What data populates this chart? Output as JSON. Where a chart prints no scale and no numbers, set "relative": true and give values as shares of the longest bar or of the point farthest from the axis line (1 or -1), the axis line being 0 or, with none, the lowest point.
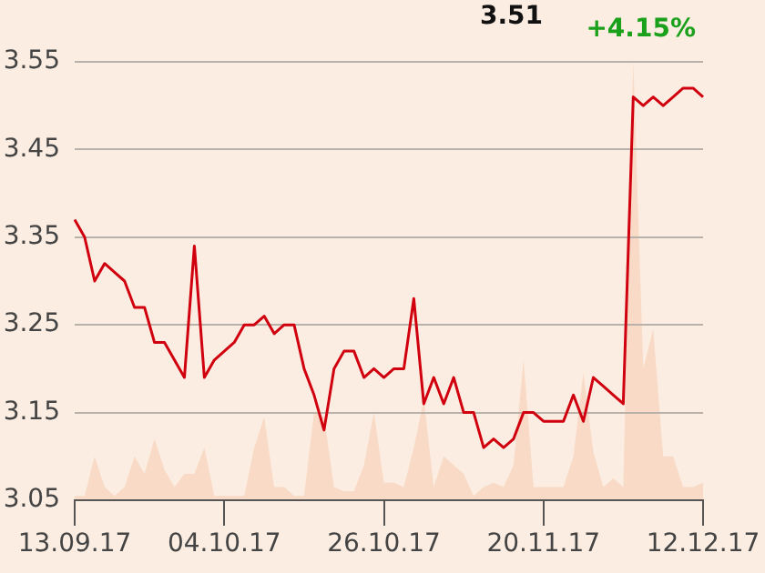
{
  "chart_data": [
    {
      "type": "line",
      "annotations": [
        "3.51",
        "+4.15%"
      ],
      "categories": [
        "13.09.17",
        null,
        null,
        null,
        null,
        null,
        null,
        null,
        null,
        null,
        null,
        null,
        null,
        null,
        null,
        "04.10.17",
        null,
        null,
        null,
        null,
        null,
        null,
        null,
        null,
        null,
        null,
        null,
        null,
        null,
        null,
        null,
        "26.10.17",
        null,
        null,
        null,
        null,
        null,
        null,
        null,
        null,
        null,
        null,
        null,
        null,
        null,
        null,
        null,
        "20.11.17",
        null,
        null,
        null,
        null,
        null,
        null,
        null,
        null,
        null,
        null,
        null,
        null,
        null,
        null,
        null,
        "12.12.17"
      ],
      "series": [
        {
          "color": "#d0000f",
          "values": [
            3.37,
            3.35,
            3.3,
            3.32,
            3.31,
            3.3,
            3.27,
            3.27,
            3.23,
            3.23,
            3.21,
            3.19,
            3.34,
            3.19,
            3.21,
            3.22,
            3.23,
            3.25,
            3.25,
            3.26,
            3.24,
            3.25,
            3.25,
            3.2,
            3.17,
            3.13,
            3.2,
            3.22,
            3.22,
            3.19,
            3.2,
            3.19,
            3.2,
            3.2,
            3.28,
            3.16,
            3.19,
            3.16,
            3.19,
            3.15,
            3.15,
            3.11,
            3.12,
            3.11,
            3.12,
            3.15,
            3.15,
            3.14,
            3.14,
            3.14,
            3.17,
            3.14,
            3.19,
            3.18,
            3.17,
            3.16,
            3.51,
            3.5,
            3.51,
            3.5,
            3.51,
            3.52,
            3.52,
            3.51
          ]
        }
      ],
      "ylim": [
        3.05,
        3.55
      ],
      "yticks": [
        3.05,
        3.15,
        3.25,
        3.35,
        3.45,
        3.55
      ],
      "grid": "y"
    },
    {
      "type": "area",
      "relative": true,
      "categories": [
        null,
        null,
        null,
        null,
        null,
        null,
        null,
        null,
        null,
        null,
        null,
        null,
        null,
        null,
        null,
        null,
        null,
        null,
        null,
        null,
        null,
        null,
        null,
        null,
        null,
        null,
        null,
        null,
        null,
        null,
        null,
        null,
        null,
        null,
        null,
        null,
        null,
        null,
        null,
        null,
        null,
        null,
        null,
        null,
        null,
        null,
        null,
        null,
        null,
        null,
        null,
        null,
        null,
        null,
        null,
        null,
        null,
        null,
        null,
        null,
        null,
        null,
        null,
        null
      ],
      "series": [
        {
          "color": "#f8dac6",
          "values": [
            0.01,
            0.01,
            0.1,
            0.03,
            0.01,
            0.03,
            0.1,
            0.06,
            0.14,
            0.07,
            0.03,
            0.06,
            0.06,
            0.12,
            0.01,
            0.01,
            0.01,
            0.01,
            0.12,
            0.19,
            0.03,
            0.03,
            0.01,
            0.01,
            0.2,
            0.19,
            0.03,
            0.02,
            0.02,
            0.08,
            0.2,
            0.04,
            0.04,
            0.03,
            0.12,
            0.23,
            0.03,
            0.1,
            0.08,
            0.06,
            0.01,
            0.03,
            0.04,
            0.03,
            0.08,
            0.32,
            0.03,
            0.03,
            0.03,
            0.03,
            0.1,
            0.29,
            0.11,
            0.03,
            0.05,
            0.03,
            1.0,
            0.3,
            0.39,
            0.1,
            0.1,
            0.03,
            0.03,
            0.04
          ]
        }
      ]
    }
  ]
}
